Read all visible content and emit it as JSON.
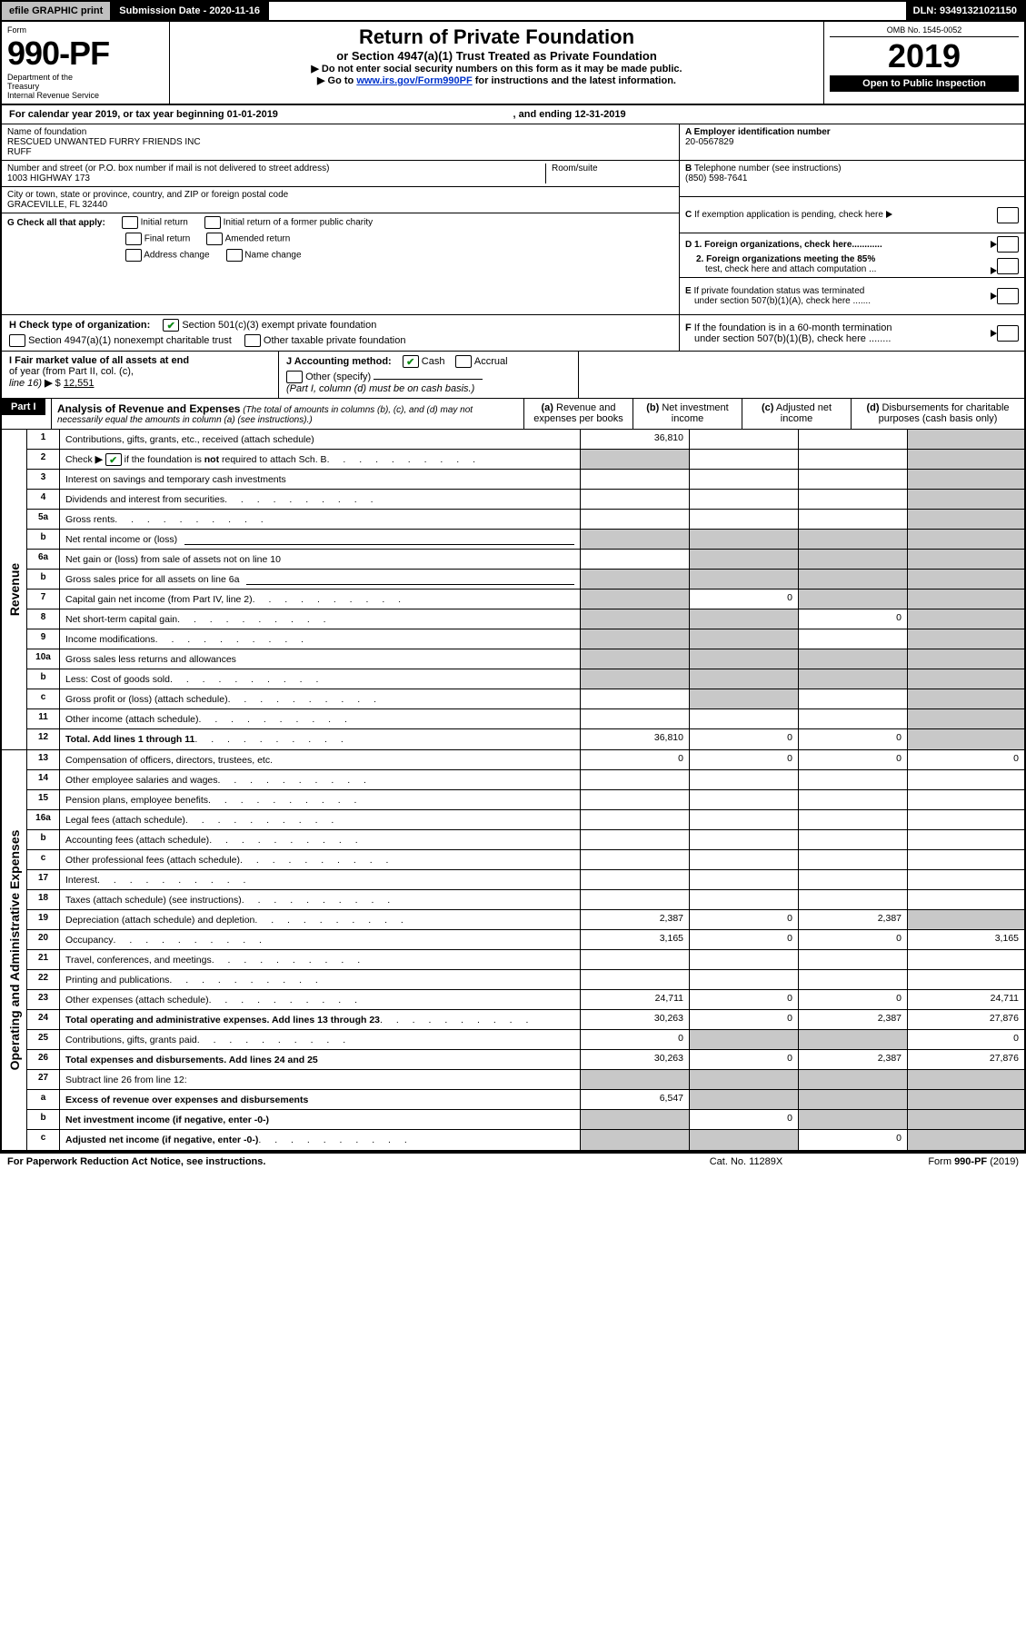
{
  "topbar": {
    "efile": "efile GRAPHIC print",
    "submission": "Submission Date - 2020-11-16",
    "dln": "DLN: 93491321021150"
  },
  "header": {
    "form_word": "Form",
    "form_no": "990-PF",
    "dept1": "Department of the",
    "dept2": "Treasury",
    "dept3": "Internal Revenue Service",
    "title": "Return of Private Foundation",
    "subtitle": "or Section 4947(a)(1) Trust Treated as Private Foundation",
    "warn": "Do not enter social security numbers on this form as it may be made public.",
    "goto_pre": "Go to ",
    "goto_link": "www.irs.gov/Form990PF",
    "goto_post": " for instructions and the latest information.",
    "omb": "OMB No. 1545-0052",
    "year": "2019",
    "open": "Open to Public Inspection"
  },
  "calendar": {
    "pre": "For calendar year 2019, or tax year beginning ",
    "begin": "01-01-2019",
    "mid": ", and ending ",
    "end": "12-31-2019"
  },
  "id": {
    "name_label": "Name of foundation",
    "name1": "RESCUED UNWANTED FURRY FRIENDS INC",
    "name2": "RUFF",
    "addr_label": "Number and street (or P.O. box number if mail is not delivered to street address)",
    "addr": "1003 HIGHWAY 173",
    "room_label": "Room/suite",
    "city_label": "City or town, state or province, country, and ZIP or foreign postal code",
    "city": "GRACEVILLE, FL  32440",
    "a_label": "A Employer identification number",
    "a_val": "20-0567829",
    "b_label": "B",
    "b_text": "Telephone number (see instructions)",
    "b_val": "(850) 598-7641",
    "c_text": "If exemption application is pending, check here",
    "d1": "D 1. Foreign organizations, check here............",
    "d2a": "2. Foreign organizations meeting the 85%",
    "d2b": "test, check here and attach computation ...",
    "e1": "If private foundation status was terminated",
    "e2": "under section 507(b)(1)(A), check here .......",
    "f1": "If the foundation is in a 60-month termination",
    "f2": "under section 507(b)(1)(B), check here ........"
  },
  "g": {
    "label": "G Check all that apply:",
    "o1": "Initial return",
    "o2": "Initial return of a former public charity",
    "o3": "Final return",
    "o4": "Amended return",
    "o5": "Address change",
    "o6": "Name change"
  },
  "h": {
    "label": "H Check type of organization:",
    "o1": "Section 501(c)(3) exempt private foundation",
    "o2": "Section 4947(a)(1) nonexempt charitable trust",
    "o3": "Other taxable private foundation"
  },
  "i": {
    "label1": "I Fair market value of all assets at end",
    "label2": "of year (from Part II, col. (c),",
    "label3": "line 16)",
    "val": "12,551"
  },
  "j": {
    "label": "J Accounting method:",
    "cash": "Cash",
    "accrual": "Accrual",
    "other": "Other (specify)",
    "note": "(Part I, column (d) must be on cash basis.)"
  },
  "part1": {
    "tag": "Part I",
    "title": "Analysis of Revenue and Expenses",
    "note": "(The total of amounts in columns (b), (c), and (d) may not necessarily equal the amounts in column (a) (see instructions).)",
    "col_a1": "(a)",
    "col_a2": "Revenue and expenses per books",
    "col_b1": "(b)",
    "col_b2": "Net investment income",
    "col_c1": "(c)",
    "col_c2": "Adjusted net income",
    "col_d1": "(d)",
    "col_d2": "Disbursements for charitable purposes (cash basis only)"
  },
  "rows_rev": [
    {
      "n": "1",
      "t": "Contributions, gifts, grants, etc., received (attach schedule)",
      "a": "36,810",
      "dgrey": true
    },
    {
      "n": "2",
      "t": "Check ▶ ☑ if the foundation is not required to attach Sch. B",
      "dots": true,
      "agrey": true,
      "dgrey": true,
      "nobind": true
    },
    {
      "n": "3",
      "t": "Interest on savings and temporary cash investments",
      "dgrey": true
    },
    {
      "n": "4",
      "t": "Dividends and interest from securities",
      "dots": true,
      "dgrey": true
    },
    {
      "n": "5a",
      "t": "Gross rents",
      "dots": true,
      "dgrey": true
    },
    {
      "n": "b",
      "t": "Net rental income or (loss)",
      "line": true,
      "agrey": true,
      "bgrey": true,
      "cgrey": true,
      "dgrey": true
    },
    {
      "n": "6a",
      "t": "Net gain or (loss) from sale of assets not on line 10",
      "bgrey": true,
      "cgrey": true,
      "dgrey": true
    },
    {
      "n": "b",
      "t": "Gross sales price for all assets on line 6a",
      "line": true,
      "agrey": true,
      "bgrey": true,
      "cgrey": true,
      "dgrey": true
    },
    {
      "n": "7",
      "t": "Capital gain net income (from Part IV, line 2)",
      "dots": true,
      "agrey": true,
      "b": "0",
      "cgrey": true,
      "dgrey": true
    },
    {
      "n": "8",
      "t": "Net short-term capital gain",
      "dots": true,
      "agrey": true,
      "bgrey": true,
      "c": "0",
      "dgrey": true
    },
    {
      "n": "9",
      "t": "Income modifications",
      "dots": true,
      "agrey": true,
      "bgrey": true,
      "dgrey": true
    },
    {
      "n": "10a",
      "t": "Gross sales less returns and allowances",
      "box": true,
      "agrey": true,
      "bgrey": true,
      "cgrey": true,
      "dgrey": true
    },
    {
      "n": "b",
      "t": "Less: Cost of goods sold",
      "dots": true,
      "box": true,
      "agrey": true,
      "bgrey": true,
      "cgrey": true,
      "dgrey": true
    },
    {
      "n": "c",
      "t": "Gross profit or (loss) (attach schedule)",
      "dots": true,
      "bgrey": true,
      "dgrey": true
    },
    {
      "n": "11",
      "t": "Other income (attach schedule)",
      "dots": true,
      "dgrey": true
    },
    {
      "n": "12",
      "t": "Total. Add lines 1 through 11",
      "dots": true,
      "bold": true,
      "a": "36,810",
      "b": "0",
      "c": "0",
      "dgrey": true
    }
  ],
  "rows_exp": [
    {
      "n": "13",
      "t": "Compensation of officers, directors, trustees, etc.",
      "a": "0",
      "b": "0",
      "c": "0",
      "d": "0"
    },
    {
      "n": "14",
      "t": "Other employee salaries and wages",
      "dots": true
    },
    {
      "n": "15",
      "t": "Pension plans, employee benefits",
      "dots": true
    },
    {
      "n": "16a",
      "t": "Legal fees (attach schedule)",
      "dots": true
    },
    {
      "n": "b",
      "t": "Accounting fees (attach schedule)",
      "dots": true
    },
    {
      "n": "c",
      "t": "Other professional fees (attach schedule)",
      "dots": true
    },
    {
      "n": "17",
      "t": "Interest",
      "dots": true
    },
    {
      "n": "18",
      "t": "Taxes (attach schedule) (see instructions)",
      "dots": true
    },
    {
      "n": "19",
      "t": "Depreciation (attach schedule) and depletion",
      "dots": true,
      "a": "2,387",
      "b": "0",
      "c": "2,387",
      "dgrey": true
    },
    {
      "n": "20",
      "t": "Occupancy",
      "dots": true,
      "a": "3,165",
      "b": "0",
      "c": "0",
      "d": "3,165"
    },
    {
      "n": "21",
      "t": "Travel, conferences, and meetings",
      "dots": true
    },
    {
      "n": "22",
      "t": "Printing and publications",
      "dots": true
    },
    {
      "n": "23",
      "t": "Other expenses (attach schedule)",
      "dots": true,
      "a": "24,711",
      "b": "0",
      "c": "0",
      "d": "24,711"
    },
    {
      "n": "24",
      "t": "Total operating and administrative expenses. Add lines 13 through 23",
      "dots": true,
      "bold": true,
      "a": "30,263",
      "b": "0",
      "c": "2,387",
      "d": "27,876"
    },
    {
      "n": "25",
      "t": "Contributions, gifts, grants paid",
      "dots": true,
      "a": "0",
      "bgrey": true,
      "cgrey": true,
      "d": "0"
    },
    {
      "n": "26",
      "t": "Total expenses and disbursements. Add lines 24 and 25",
      "bold": true,
      "a": "30,263",
      "b": "0",
      "c": "2,387",
      "d": "27,876"
    },
    {
      "n": "27",
      "t": "Subtract line 26 from line 12:",
      "agrey": true,
      "bgrey": true,
      "cgrey": true,
      "dgrey": true
    },
    {
      "n": "a",
      "t": "Excess of revenue over expenses and disbursements",
      "bold": true,
      "a": "6,547",
      "bgrey": true,
      "cgrey": true,
      "dgrey": true
    },
    {
      "n": "b",
      "t": "Net investment income (if negative, enter -0-)",
      "bold": true,
      "agrey": true,
      "b": "0",
      "cgrey": true,
      "dgrey": true
    },
    {
      "n": "c",
      "t": "Adjusted net income (if negative, enter -0-)",
      "bold": true,
      "dots": true,
      "agrey": true,
      "bgrey": true,
      "c": "0",
      "dgrey": true
    }
  ],
  "sidelabels": {
    "rev": "Revenue",
    "exp": "Operating and Administrative Expenses"
  },
  "footer": {
    "left": "For Paperwork Reduction Act Notice, see instructions.",
    "mid": "Cat. No. 11289X",
    "right_pre": "Form ",
    "right_b": "990-PF",
    "right_post": " (2019)"
  }
}
